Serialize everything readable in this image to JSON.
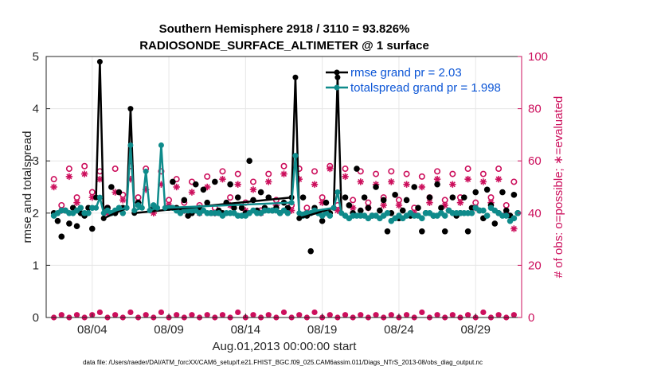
{
  "chart_data": {
    "type": "line",
    "title": "Southern Hemisphere 2918 / 3110 = 93.826%",
    "subtitle": "RADIOSONDE_SURFACE_ALTIMETER @ 1 surface",
    "xlabel": "Aug.01,2013 00:00:00 start",
    "ylabel": "rmse and totalspread",
    "y2label": "# of obs: o=possible; ∗=evaluated",
    "footer": "data file: /Users/raeder/DAI/ATM_forcXX/CAM6_setup/f.e21.FHIST_BGC.f09_025.CAM6assim.011/Diags_NTrS_2013-08/obs_diag_output.nc",
    "xlim": [
      0.5,
      31.5
    ],
    "ylim": [
      0,
      5
    ],
    "y2lim": [
      0,
      100
    ],
    "xticks": [
      {
        "x": 3.5,
        "label": "08/04"
      },
      {
        "x": 8.5,
        "label": "08/09"
      },
      {
        "x": 13.5,
        "label": "08/14"
      },
      {
        "x": 18.5,
        "label": "08/19"
      },
      {
        "x": 23.5,
        "label": "08/24"
      },
      {
        "x": 28.5,
        "label": "08/29"
      }
    ],
    "yticks": [
      0,
      1,
      2,
      3,
      4,
      5
    ],
    "y2ticks": [
      0,
      20,
      40,
      60,
      80,
      100
    ],
    "colors": {
      "rmse": "#000000",
      "spread": "#0f8b8b",
      "obs": "#cc0f5c",
      "legend_text": "#0b55d6"
    },
    "series": [
      {
        "name": "rmse grand pr = 2.03",
        "axis": "left",
        "style": "line",
        "x": [
          3.75,
          4.0,
          4.25,
          5.75,
          6.0,
          6.25,
          16.5,
          16.75,
          17.0,
          19.25,
          19.5,
          19.75
        ],
        "values": [
          2.3,
          4.9,
          1.9,
          2.1,
          4.0,
          2.0,
          2.3,
          4.6,
          1.9,
          2.1,
          4.6,
          2.0
        ]
      },
      {
        "name": "totalspread grand pr = 1.998",
        "axis": "left",
        "style": "line",
        "x": [
          3.75,
          4.0,
          4.25,
          5.75,
          6.0,
          6.25,
          6.75,
          7.0,
          7.25,
          7.75,
          8.0,
          8.25,
          16.5,
          16.75,
          17.0,
          19.25,
          19.5,
          19.75
        ],
        "values": [
          2.1,
          2.3,
          2.0,
          2.1,
          3.3,
          2.05,
          2.1,
          2.8,
          2.05,
          2.1,
          3.3,
          2.1,
          2.2,
          3.1,
          2.0,
          2.1,
          2.4,
          2.0
        ]
      },
      {
        "name": "rmse",
        "axis": "left",
        "style": "markers",
        "x": [
          1.0,
          1.25,
          1.5,
          1.75,
          2.0,
          2.25,
          2.5,
          2.75,
          3.0,
          3.25,
          3.5,
          4.5,
          4.75,
          5.0,
          5.25,
          5.5,
          6.5,
          7.5,
          8.5,
          8.75,
          9.0,
          9.25,
          9.5,
          9.75,
          10.0,
          10.25,
          10.5,
          10.75,
          11.0,
          11.25,
          11.5,
          11.75,
          12.0,
          12.25,
          12.5,
          12.75,
          13.0,
          13.25,
          13.5,
          13.75,
          14.0,
          14.25,
          14.5,
          14.75,
          15.0,
          15.25,
          15.5,
          15.75,
          16.0,
          16.25,
          17.25,
          17.5,
          17.75,
          18.0,
          18.25,
          18.5,
          18.75,
          19.0,
          20.0,
          20.25,
          20.5,
          20.75,
          21.0,
          21.25,
          21.5,
          21.75,
          22.0,
          22.25,
          22.5,
          22.75,
          23.0,
          23.25,
          23.5,
          23.75,
          24.0,
          24.25,
          24.5,
          24.75,
          25.0,
          25.25,
          25.5,
          25.75,
          26.0,
          26.25,
          26.5,
          26.75,
          27.0,
          27.25,
          27.5,
          27.75,
          28.0,
          28.25,
          28.5,
          28.75,
          29.0,
          29.25,
          29.5,
          29.75,
          30.0,
          30.25,
          30.5,
          30.75,
          31.0,
          31.25
        ],
        "values": [
          2.0,
          1.85,
          1.55,
          2.05,
          1.8,
          2.1,
          1.75,
          2.0,
          1.95,
          2.1,
          1.7,
          2.1,
          2.5,
          2.0,
          2.4,
          2.1,
          2.2,
          2.1,
          2.1,
          2.6,
          2.1,
          2.05,
          2.25,
          1.95,
          2.0,
          2.55,
          2.1,
          2.45,
          2.2,
          2.0,
          2.6,
          2.05,
          2.0,
          2.2,
          2.55,
          2.1,
          2.3,
          2.1,
          2.0,
          3.0,
          2.25,
          2.05,
          2.4,
          2.1,
          2.3,
          2.05,
          2.1,
          2.0,
          2.2,
          2.1,
          2.3,
          1.95,
          1.27,
          2.1,
          2.0,
          1.85,
          2.2,
          2.0,
          2.3,
          2.15,
          2.0,
          2.85,
          2.05,
          2.3,
          2.1,
          1.95,
          2.5,
          2.05,
          2.25,
          1.65,
          2.0,
          2.35,
          1.9,
          2.05,
          2.25,
          1.95,
          2.5,
          2.1,
          1.65,
          2.0,
          2.3,
          1.95,
          2.55,
          2.1,
          1.65,
          2.05,
          2.3,
          1.95,
          2.0,
          2.3,
          1.65,
          2.1,
          2.4,
          2.05,
          1.9,
          2.45,
          2.15,
          1.8,
          2.0,
          2.4,
          2.05,
          1.95,
          2.35,
          2.0
        ]
      },
      {
        "name": "totalspread",
        "axis": "left",
        "style": "markers",
        "x": [
          1.0,
          1.25,
          1.5,
          1.75,
          2.0,
          2.25,
          2.5,
          2.75,
          3.0,
          3.25,
          3.5,
          4.5,
          4.75,
          5.0,
          5.25,
          5.5,
          6.5,
          7.5,
          8.5,
          8.75,
          9.0,
          9.25,
          9.5,
          9.75,
          10.0,
          10.25,
          10.5,
          10.75,
          11.0,
          11.25,
          11.5,
          11.75,
          12.0,
          12.25,
          12.5,
          12.75,
          13.0,
          13.25,
          13.5,
          13.75,
          14.0,
          14.25,
          14.5,
          14.75,
          15.0,
          15.25,
          15.5,
          15.75,
          16.0,
          16.25,
          17.25,
          17.5,
          17.75,
          18.0,
          18.25,
          18.5,
          18.75,
          19.0,
          20.0,
          20.25,
          20.5,
          20.75,
          21.0,
          21.25,
          21.5,
          21.75,
          22.0,
          22.25,
          22.5,
          22.75,
          23.0,
          23.25,
          23.5,
          23.75,
          24.0,
          24.25,
          24.5,
          24.75,
          25.0,
          25.25,
          25.5,
          25.75,
          26.0,
          26.25,
          26.5,
          26.75,
          27.0,
          27.25,
          27.5,
          27.75,
          28.0,
          28.25,
          28.5,
          28.75,
          29.0,
          29.25,
          29.5,
          29.75,
          30.0,
          30.25,
          30.5,
          30.75,
          31.0,
          31.25
        ],
        "values": [
          1.95,
          2.0,
          2.05,
          2.05,
          2.0,
          2.0,
          2.05,
          2.1,
          2.0,
          2.0,
          2.1,
          2.05,
          2.0,
          2.05,
          2.1,
          2.0,
          2.15,
          2.15,
          2.1,
          2.1,
          2.05,
          2.0,
          2.05,
          2.05,
          2.05,
          2.05,
          2.0,
          2.05,
          2.0,
          2.0,
          2.0,
          2.0,
          1.95,
          2.0,
          2.0,
          2.0,
          1.95,
          1.95,
          1.95,
          2.0,
          2.05,
          2.0,
          2.0,
          2.05,
          2.05,
          2.05,
          2.05,
          2.0,
          2.05,
          2.0,
          1.95,
          2.0,
          2.0,
          2.05,
          2.0,
          1.95,
          2.0,
          1.95,
          1.95,
          1.9,
          1.95,
          1.95,
          1.95,
          1.95,
          1.9,
          1.95,
          1.95,
          1.9,
          1.95,
          2.0,
          1.85,
          1.9,
          1.95,
          1.9,
          1.95,
          2.0,
          1.95,
          1.95,
          1.9,
          2.0,
          2.0,
          1.95,
          1.95,
          2.0,
          1.95,
          2.05,
          2.0,
          2.0,
          2.0,
          2.0,
          2.0,
          2.0,
          2.1,
          2.05,
          2.05,
          1.95,
          2.1,
          2.05,
          2.0,
          1.95,
          1.95,
          1.85,
          1.9,
          2.0
        ]
      },
      {
        "name": "obs possible",
        "axis": "right",
        "style": "open-circles",
        "x": [
          1.0,
          1.5,
          2.0,
          2.5,
          3.0,
          3.5,
          4.0,
          4.5,
          5.0,
          5.5,
          6.0,
          6.5,
          7.0,
          7.5,
          8.0,
          8.5,
          9.0,
          9.5,
          10.0,
          10.5,
          11.0,
          11.5,
          12.0,
          12.5,
          13.0,
          13.5,
          14.0,
          14.5,
          15.0,
          15.5,
          16.0,
          16.5,
          17.0,
          17.5,
          18.0,
          18.5,
          19.0,
          19.5,
          20.0,
          20.5,
          21.0,
          21.5,
          22.0,
          22.5,
          23.0,
          23.5,
          24.0,
          24.5,
          25.0,
          25.5,
          26.0,
          26.5,
          27.0,
          27.5,
          28.0,
          28.5,
          29.0,
          29.5,
          30.0,
          30.5,
          31.0
        ],
        "values": [
          53,
          43,
          57,
          46,
          58,
          48,
          56,
          42,
          57,
          47,
          58,
          46,
          57,
          42,
          56,
          45,
          53,
          44,
          52,
          43,
          54,
          42,
          56,
          46,
          55,
          44,
          52,
          41,
          55,
          45,
          58,
          43,
          57,
          42,
          56,
          46,
          58,
          43,
          57,
          45,
          56,
          44,
          55,
          46,
          56,
          45,
          55,
          42,
          54,
          46,
          56,
          45,
          55,
          46,
          57,
          44,
          55,
          46,
          57,
          43,
          52
        ]
      },
      {
        "name": "obs evaluated",
        "axis": "right",
        "style": "asterisks",
        "x": [
          1.0,
          1.5,
          2.0,
          2.5,
          3.0,
          3.5,
          4.0,
          4.5,
          5.0,
          5.5,
          6.0,
          6.5,
          7.0,
          7.5,
          8.0,
          8.5,
          9.0,
          9.5,
          10.0,
          10.5,
          11.0,
          11.5,
          12.0,
          12.5,
          13.0,
          13.5,
          14.0,
          14.5,
          15.0,
          15.5,
          16.0,
          16.5,
          17.0,
          17.5,
          18.0,
          18.5,
          19.0,
          19.5,
          20.0,
          20.5,
          21.0,
          21.5,
          22.0,
          22.5,
          23.0,
          23.5,
          24.0,
          24.5,
          25.0,
          25.5,
          26.0,
          26.5,
          27.0,
          27.5,
          28.0,
          28.5,
          29.0,
          29.5,
          30.0,
          30.5,
          31.0
        ],
        "values": [
          50,
          41,
          54,
          44,
          55,
          46,
          53,
          40,
          48,
          45,
          53,
          44,
          49,
          40,
          51,
          43,
          50,
          41,
          48,
          40,
          50,
          40,
          53,
          43,
          51,
          41,
          49,
          40,
          52,
          43,
          55,
          41,
          53,
          40,
          51,
          44,
          57,
          41,
          54,
          42,
          52,
          42,
          51,
          43,
          52,
          43,
          51,
          40,
          50,
          44,
          53,
          43,
          51,
          44,
          53,
          42,
          52,
          44,
          53,
          40,
          34
        ]
      },
      {
        "name": "obs near zero",
        "axis": "right",
        "style": "dots",
        "x": [
          1.0,
          1.5,
          2.0,
          2.5,
          3.0,
          3.5,
          4.0,
          4.5,
          5.0,
          5.5,
          6.0,
          6.5,
          7.0,
          7.5,
          8.0,
          8.5,
          9.0,
          9.5,
          10.0,
          10.5,
          11.0,
          11.5,
          12.0,
          12.5,
          13.0,
          13.5,
          14.0,
          14.5,
          15.0,
          15.5,
          16.0,
          16.5,
          17.0,
          17.5,
          18.0,
          18.5,
          19.0,
          19.5,
          20.0,
          20.5,
          21.0,
          21.5,
          22.0,
          22.5,
          23.0,
          23.5,
          24.0,
          24.5,
          25.0,
          25.5,
          26.0,
          26.5,
          27.0,
          27.5,
          28.0,
          28.5,
          29.0,
          29.5,
          30.0,
          30.5,
          31.0
        ],
        "values": [
          0,
          1,
          0,
          1,
          0,
          1,
          2,
          0,
          1,
          0,
          2,
          0,
          1,
          0,
          2,
          0,
          1,
          0,
          1,
          0,
          1,
          0,
          1,
          0,
          2,
          0,
          1,
          0,
          1,
          0,
          2,
          0,
          1,
          0,
          2,
          0,
          1,
          0,
          1,
          0,
          1,
          0,
          1,
          0,
          1,
          0,
          1,
          0,
          2,
          0,
          1,
          0,
          1,
          0,
          1,
          0,
          2,
          0,
          1,
          0,
          1
        ]
      }
    ]
  }
}
